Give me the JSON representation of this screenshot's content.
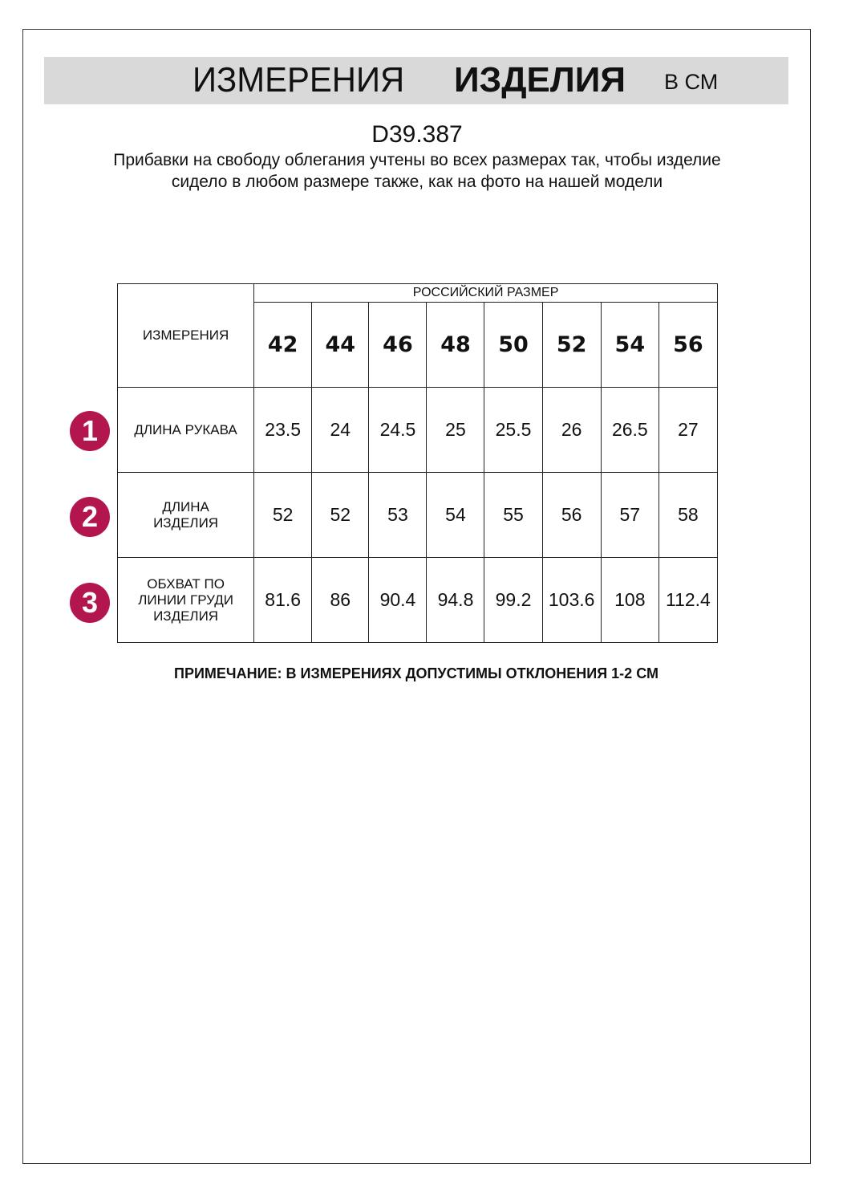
{
  "header": {
    "title_regular": "ИЗМЕРЕНИЯ",
    "title_bold": "ИЗДЕЛИЯ",
    "unit": "В СМ"
  },
  "article": "D39.387",
  "description": "Прибавки на свободу облегания учтены во всех размерах так, чтобы изделие сидело в любом размере также, как на фото на нашей модели",
  "table": {
    "corner": "ИЗМЕРЕНИЯ",
    "group_header": "РОССИЙСКИЙ РАЗМЕР",
    "sizes": [
      "42",
      "44",
      "46",
      "48",
      "50",
      "52",
      "54",
      "56"
    ],
    "rows": [
      {
        "badge": "1",
        "label": "ДЛИНА РУКАВА",
        "values": [
          "23.5",
          "24",
          "24.5",
          "25",
          "25.5",
          "26",
          "26.5",
          "27"
        ]
      },
      {
        "badge": "2",
        "label": "ДЛИНА ИЗДЕЛИЯ",
        "values": [
          "52",
          "52",
          "53",
          "54",
          "55",
          "56",
          "57",
          "58"
        ]
      },
      {
        "badge": "3",
        "label": "ОБХВАТ ПО ЛИНИИ ГРУДИ ИЗДЕЛИЯ",
        "values": [
          "81.6",
          "86",
          "90.4",
          "94.8",
          "99.2",
          "103.6",
          "108",
          "112.4"
        ]
      }
    ],
    "badge_color": "#b3164f"
  },
  "note": "ПРИМЕЧАНИЕ: В ИЗМЕРЕНИЯХ ДОПУСТИМЫ ОТКЛОНЕНИЯ 1-2 СМ"
}
